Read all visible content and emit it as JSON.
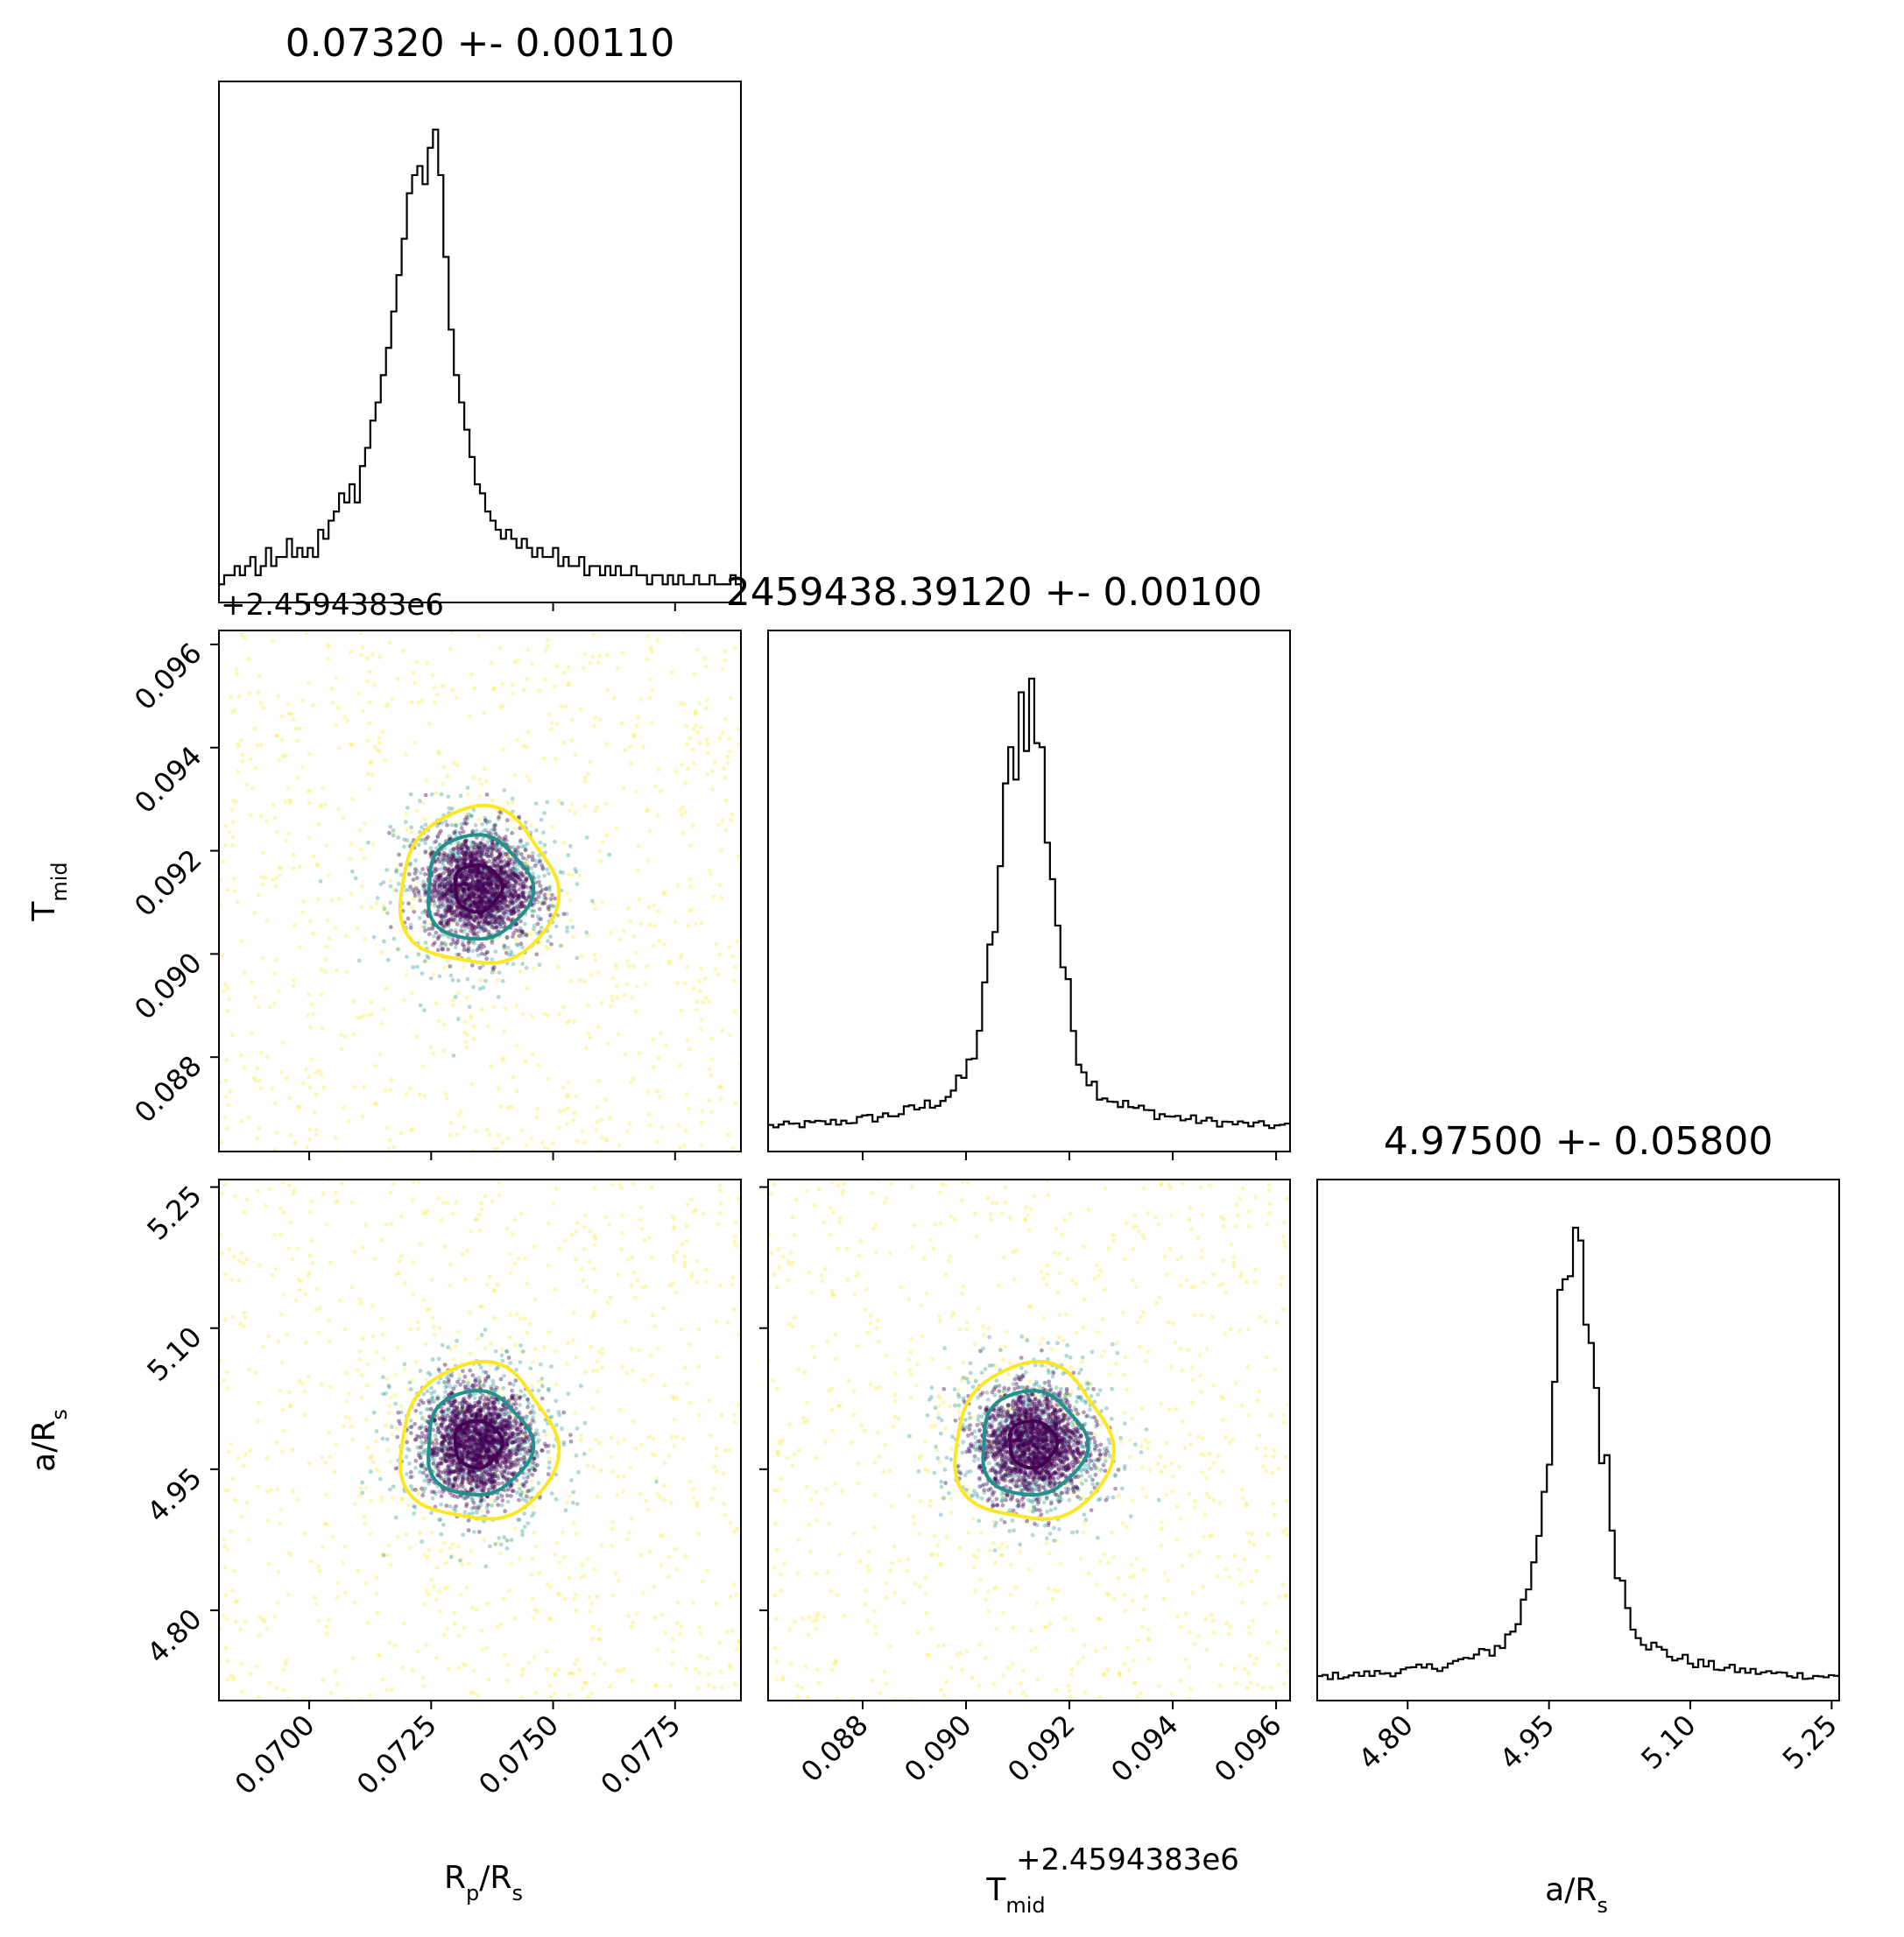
{
  "chart_data": [
    {
      "type": "histogram",
      "parameter": "Rp/Rs",
      "title": "0.07320 +- 0.00110",
      "center": 0.07345,
      "xlim": [
        0.06815,
        0.07885
      ],
      "xticks": [
        "0.0700",
        "0.0725",
        "0.0750",
        "0.0775"
      ],
      "xtick_values": [
        0.07,
        0.0725,
        0.075,
        0.0775
      ],
      "xlabel": {
        "main": "R",
        "sub": "p",
        "rest": "/R",
        "sub2": "s"
      },
      "bins": 100,
      "counts": [
        2,
        3,
        3,
        4,
        3,
        4,
        5,
        3,
        4,
        6,
        4,
        5,
        5,
        7,
        5,
        6,
        5,
        6,
        5,
        8,
        7,
        9,
        10,
        12,
        11,
        13,
        11,
        15,
        17,
        20,
        22,
        25,
        28,
        32,
        36,
        40,
        45,
        47,
        48,
        46,
        50,
        52,
        47,
        38,
        30,
        25,
        22,
        19,
        16,
        13,
        12,
        10,
        9,
        8,
        7,
        8,
        7,
        6,
        7,
        6,
        5,
        6,
        5,
        5,
        6,
        4,
        5,
        4,
        4,
        5,
        3,
        4,
        4,
        3,
        4,
        3,
        4,
        3,
        3,
        4,
        3,
        3,
        2,
        3,
        3,
        2,
        3,
        2,
        3,
        2,
        2,
        3,
        2,
        2,
        3,
        2,
        2,
        2,
        3,
        2
      ]
    },
    {
      "type": "histogram",
      "parameter": "Tmid",
      "title": "2459438.39120 +- 0.00100",
      "center": 0.09128,
      "xlim": [
        0.08617,
        0.09627
      ],
      "xticks": [
        "0.088",
        "0.090",
        "0.092",
        "0.094",
        "0.096"
      ],
      "xtick_values": [
        0.088,
        0.09,
        0.092,
        0.094,
        0.096
      ],
      "xlabel": {
        "main": "T",
        "sub": "mid",
        "rest": "",
        "sub2": ""
      },
      "axis_offset": "+2.4594383e6",
      "bins": 100
    },
    {
      "type": "histogram",
      "parameter": "a/Rs",
      "title": "4.97500 +- 0.05800",
      "center": 4.977,
      "xlim": [
        4.704,
        5.258
      ],
      "xticks": [
        "4.80",
        "4.95",
        "5.10",
        "5.25"
      ],
      "xtick_values": [
        4.8,
        4.95,
        5.1,
        5.25
      ],
      "xlabel": {
        "main": "a/R",
        "sub": "",
        "rest": "",
        "sub2": "s"
      },
      "bins": 100
    },
    {
      "type": "scatter",
      "x_param": "Rp/Rs",
      "y_param": "Tmid",
      "x_center": 0.07345,
      "y_center": 0.09128,
      "ylabel": {
        "main": "T",
        "sub": "mid"
      },
      "yticks": [
        "0.088",
        "0.090",
        "0.092",
        "0.094",
        "0.096"
      ],
      "ytick_values": [
        0.088,
        0.09,
        0.092,
        0.094,
        0.096
      ],
      "y_axis_offset": "+2.4594383e6",
      "contour_levels": [
        "inner",
        "middle",
        "outer"
      ]
    },
    {
      "type": "scatter",
      "x_param": "Rp/Rs",
      "y_param": "a/Rs",
      "x_center": 0.07345,
      "y_center": 4.977,
      "ylabel": {
        "main": "a/R",
        "sub": "s"
      },
      "yticks": [
        "4.80",
        "4.95",
        "5.10",
        "5.25"
      ],
      "ytick_values": [
        4.8,
        4.95,
        5.1,
        5.25
      ]
    },
    {
      "type": "scatter",
      "x_param": "Tmid",
      "y_param": "a/Rs",
      "x_center": 0.09128,
      "y_center": 4.977
    }
  ],
  "colors": {
    "inner": "#440154",
    "middle": "#21918c",
    "outer": "#fde725",
    "line": "#000000"
  }
}
